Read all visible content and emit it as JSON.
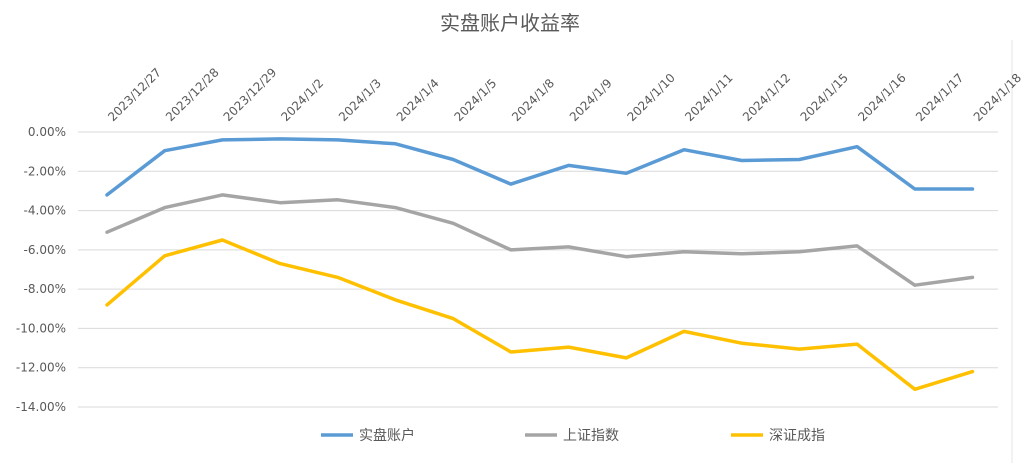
{
  "chart_data": {
    "type": "line",
    "title": "实盘账户收益率",
    "categories": [
      "2023/12/27",
      "2023/12/28",
      "2023/12/29",
      "2024/1/2",
      "2024/1/3",
      "2024/1/4",
      "2024/1/5",
      "2024/1/8",
      "2024/1/9",
      "2024/1/10",
      "2024/1/11",
      "2024/1/12",
      "2024/1/15",
      "2024/1/16",
      "2024/1/17",
      "2024/1/18"
    ],
    "y_ticks": [
      "0.00%",
      "-2.00%",
      "-4.00%",
      "-6.00%",
      "-8.00%",
      "-10.00%",
      "-12.00%",
      "-14.00%"
    ],
    "ylim": [
      -14,
      0
    ],
    "grid": true,
    "legend_position": "bottom",
    "series": [
      {
        "name": "实盘账户",
        "color": "#5B9BD5",
        "values": [
          -3.2,
          -0.95,
          -0.4,
          -0.35,
          -0.4,
          -0.6,
          -1.4,
          -2.65,
          -1.7,
          -2.1,
          -0.9,
          -1.45,
          -1.4,
          -0.75,
          -2.9,
          -2.9
        ]
      },
      {
        "name": "上证指数",
        "color": "#A5A5A5",
        "values": [
          -5.1,
          -3.85,
          -3.2,
          -3.6,
          -3.45,
          -3.85,
          -4.65,
          -6.0,
          -5.85,
          -6.35,
          -6.1,
          -6.2,
          -6.1,
          -5.8,
          -7.8,
          -7.4
        ]
      },
      {
        "name": "深证成指",
        "color": "#FFC000",
        "values": [
          -8.8,
          -6.3,
          -5.5,
          -6.7,
          -7.4,
          -8.55,
          -9.5,
          -11.2,
          -10.95,
          -11.5,
          -10.15,
          -10.75,
          -11.05,
          -10.8,
          -13.1,
          -12.2
        ]
      }
    ]
  }
}
